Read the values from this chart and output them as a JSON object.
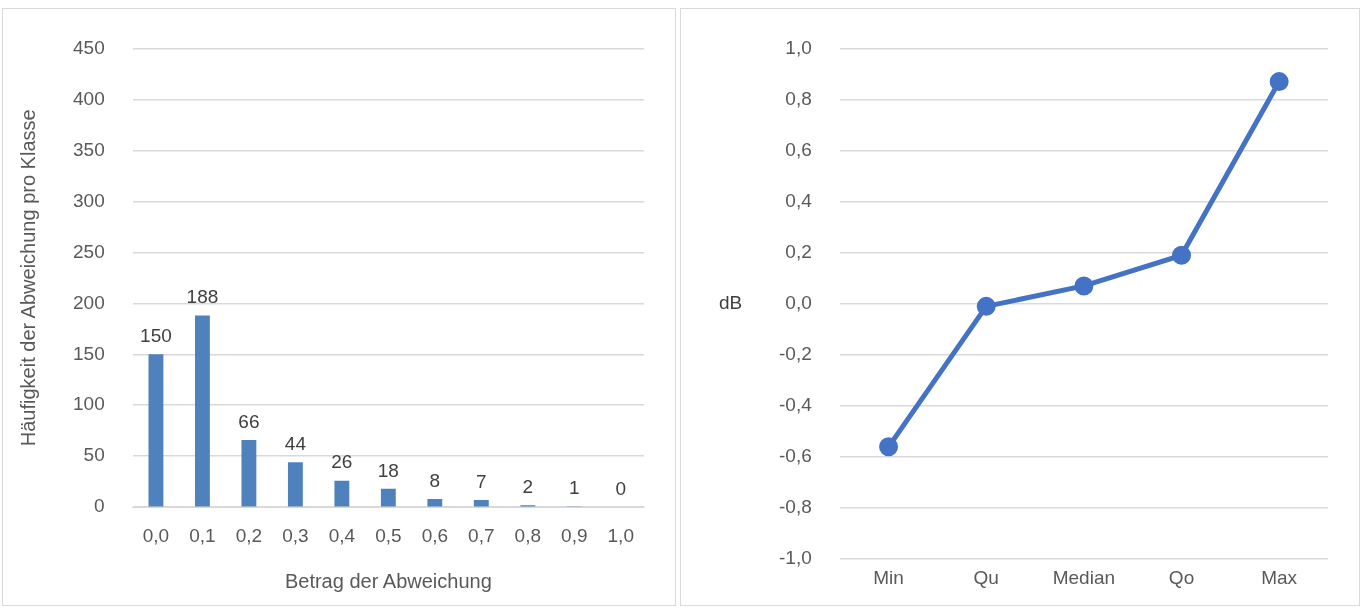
{
  "chart_data": [
    {
      "type": "bar",
      "xlabel": "Betrag der Abweichung",
      "ylabel": "Häufigkeit der Abweichung pro Klasse",
      "categories": [
        "0,0",
        "0,1",
        "0,2",
        "0,3",
        "0,4",
        "0,5",
        "0,6",
        "0,7",
        "0,8",
        "0,9",
        "1,0"
      ],
      "values": [
        150,
        188,
        66,
        44,
        26,
        18,
        8,
        7,
        2,
        1,
        0
      ],
      "color": "#4f81bd",
      "ylim": [
        0,
        450
      ],
      "yticks": [
        0,
        50,
        100,
        150,
        200,
        250,
        300,
        350,
        400,
        450
      ],
      "grid": "y",
      "data_labels": true,
      "legend": false
    },
    {
      "type": "line",
      "ylabel": "dB",
      "categories": [
        "Min",
        "Qu",
        "Median",
        "Qo",
        "Max"
      ],
      "values": [
        -0.56,
        -0.01,
        0.07,
        0.19,
        0.87
      ],
      "color": "#4472c4",
      "ylim": [
        -1,
        1
      ],
      "yticks": [
        {
          "value": -1,
          "label": "-1,0"
        },
        {
          "value": -0.8,
          "label": "-0,8"
        },
        {
          "value": -0.6,
          "label": "-0,6"
        },
        {
          "value": -0.4,
          "label": "-0,4"
        },
        {
          "value": -0.2,
          "label": "-0,2"
        },
        {
          "value": 0,
          "label": "0,0"
        },
        {
          "value": 0.2,
          "label": "0,2"
        },
        {
          "value": 0.4,
          "label": "0,4"
        },
        {
          "value": 0.6,
          "label": "0,6"
        },
        {
          "value": 0.8,
          "label": "0,8"
        },
        {
          "value": 1,
          "label": "1,0"
        }
      ],
      "grid": "y",
      "marker": "circle",
      "line_style": "solid",
      "legend": false
    }
  ]
}
